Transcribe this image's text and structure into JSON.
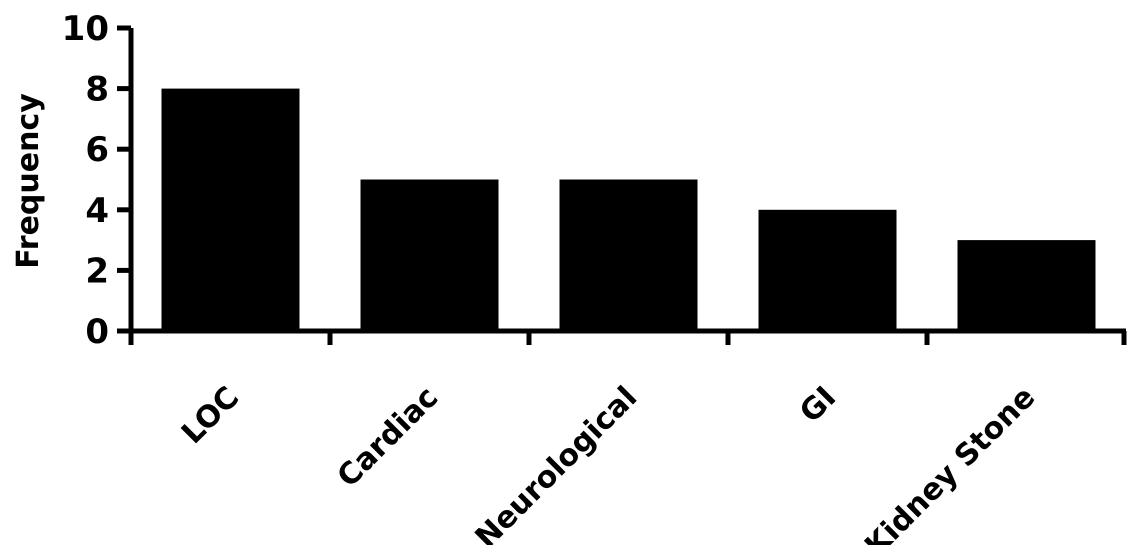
{
  "chart_data": {
    "type": "bar",
    "title": "",
    "xlabel": "",
    "ylabel": "Frequency",
    "categories": [
      "LOC",
      "Cardiac",
      "Neurological",
      "GI",
      "Kidney Stone"
    ],
    "values": [
      8,
      5,
      5,
      4,
      3
    ],
    "ylim": [
      0,
      10
    ],
    "yticks": [
      0,
      2,
      4,
      6,
      8,
      10
    ],
    "grid": false,
    "legend": "none",
    "bar_color": "#000000",
    "axis_color": "#000000"
  }
}
